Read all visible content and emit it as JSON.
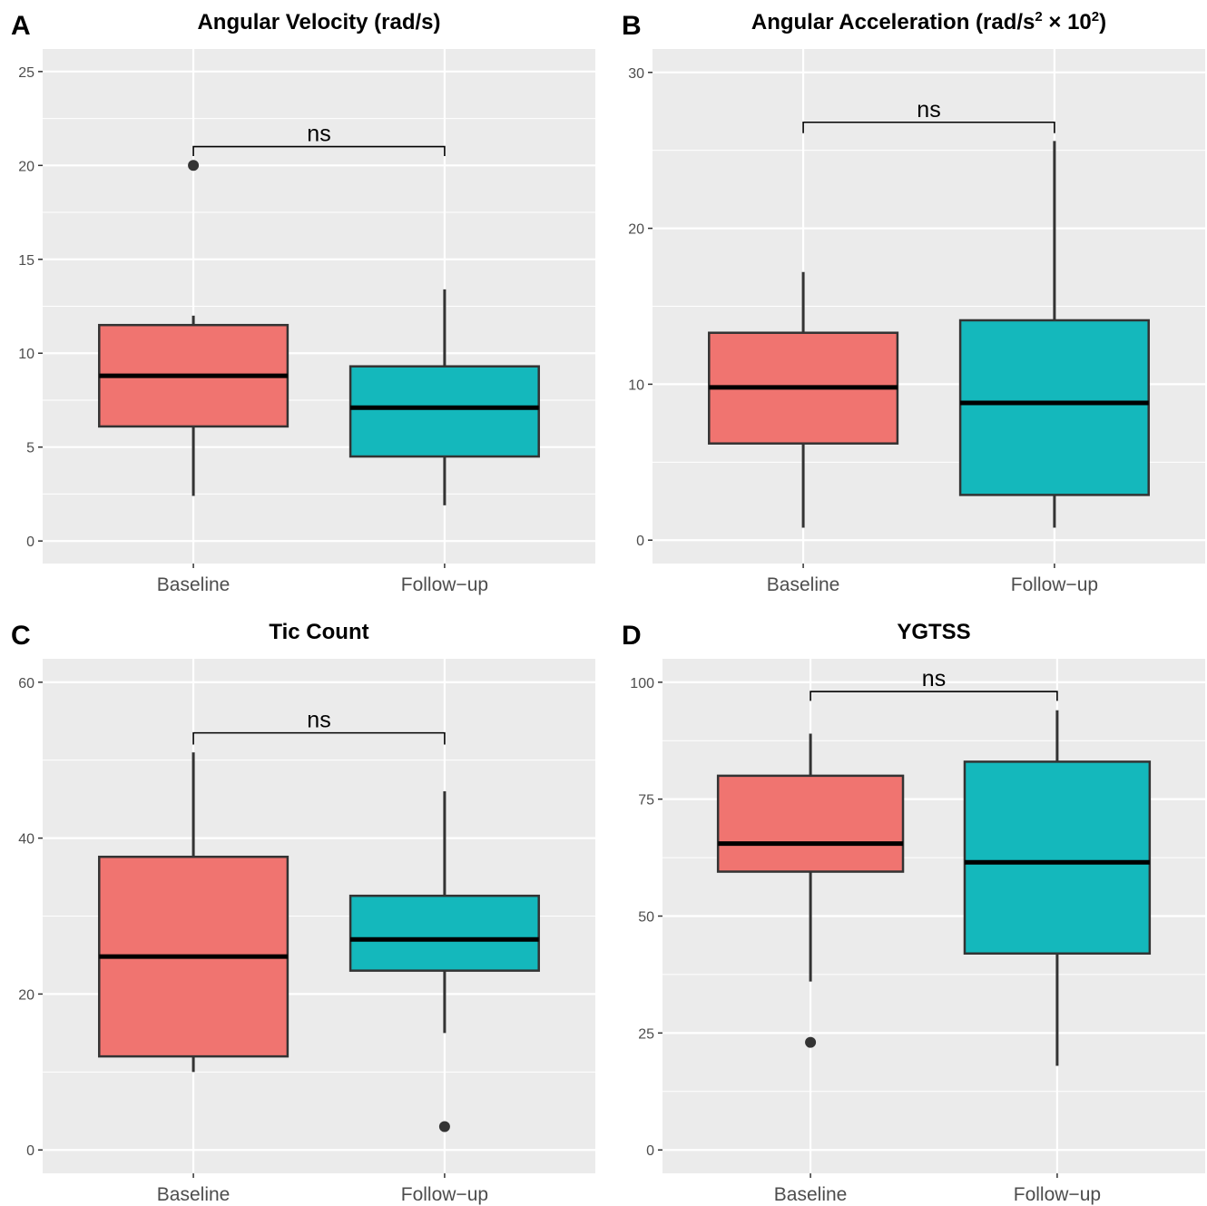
{
  "figure": {
    "panels": [
      {
        "letter": "A",
        "title": "Angular Velocity (rad/s)",
        "title_sup": [],
        "chart_data": {
          "type": "box",
          "categories": [
            "Baseline",
            "Follow−up"
          ],
          "ylim": [
            -1.2,
            26.2
          ],
          "yticks": [
            0,
            5,
            10,
            15,
            20,
            25
          ],
          "boxes": [
            {
              "category": "Baseline",
              "min": 2.4,
              "q1": 6.1,
              "median": 8.8,
              "q3": 11.5,
              "max": 12.0,
              "outliers": [
                20.0
              ],
              "color": "#F07470"
            },
            {
              "category": "Follow−up",
              "min": 1.9,
              "q1": 4.5,
              "median": 7.1,
              "q3": 9.3,
              "max": 13.4,
              "outliers": [],
              "color": "#14B8BC"
            }
          ],
          "significance": {
            "label": "ns",
            "y_bracket": 21.0,
            "y_tips": 20.5
          }
        }
      },
      {
        "letter": "B",
        "title": "Angular Acceleration (rad/s",
        "title_sup": [
          "2",
          " × 10",
          "2",
          ")"
        ],
        "chart_data": {
          "type": "box",
          "categories": [
            "Baseline",
            "Follow−up"
          ],
          "ylim": [
            -1.5,
            31.5
          ],
          "yticks": [
            0,
            10,
            20,
            30
          ],
          "boxes": [
            {
              "category": "Baseline",
              "min": 0.8,
              "q1": 6.2,
              "median": 9.8,
              "q3": 13.3,
              "max": 17.2,
              "outliers": [],
              "color": "#F07470"
            },
            {
              "category": "Follow−up",
              "min": 0.8,
              "q1": 2.9,
              "median": 8.8,
              "q3": 14.1,
              "max": 25.6,
              "outliers": [],
              "color": "#14B8BC"
            }
          ],
          "significance": {
            "label": "ns",
            "y_bracket": 26.8,
            "y_tips": 26.1
          }
        }
      },
      {
        "letter": "C",
        "title": "Tic Count",
        "title_sup": [],
        "chart_data": {
          "type": "box",
          "categories": [
            "Baseline",
            "Follow−up"
          ],
          "ylim": [
            -3.0,
            63.0
          ],
          "yticks": [
            0,
            20,
            40,
            60
          ],
          "boxes": [
            {
              "category": "Baseline",
              "min": 10.0,
              "q1": 12.0,
              "median": 24.8,
              "q3": 37.6,
              "max": 51.0,
              "outliers": [],
              "color": "#F07470"
            },
            {
              "category": "Follow−up",
              "min": 15.0,
              "q1": 23.0,
              "median": 27.0,
              "q3": 32.6,
              "max": 46.0,
              "outliers": [
                3.0
              ],
              "color": "#14B8BC"
            }
          ],
          "significance": {
            "label": "ns",
            "y_bracket": 53.5,
            "y_tips": 52.0
          }
        }
      },
      {
        "letter": "D",
        "title": "YGTSS",
        "title_sup": [],
        "chart_data": {
          "type": "box",
          "categories": [
            "Baseline",
            "Follow−up"
          ],
          "ylim": [
            -5.0,
            105.0
          ],
          "yticks": [
            0,
            25,
            50,
            75,
            100
          ],
          "ytick_labels": [
            "0",
            "25",
            "50",
            "75",
            "100"
          ],
          "boxes": [
            {
              "category": "Baseline",
              "min": 36.0,
              "q1": 59.5,
              "median": 65.5,
              "q3": 80.0,
              "max": 89.0,
              "outliers": [
                23.0
              ],
              "color": "#F07470"
            },
            {
              "category": "Follow−up",
              "min": 18.0,
              "q1": 42.0,
              "median": 61.5,
              "q3": 83.0,
              "max": 94.0,
              "outliers": [],
              "color": "#14B8BC"
            }
          ],
          "significance": {
            "label": "ns",
            "y_bracket": 98.0,
            "y_tips": 96.0
          }
        }
      }
    ]
  }
}
